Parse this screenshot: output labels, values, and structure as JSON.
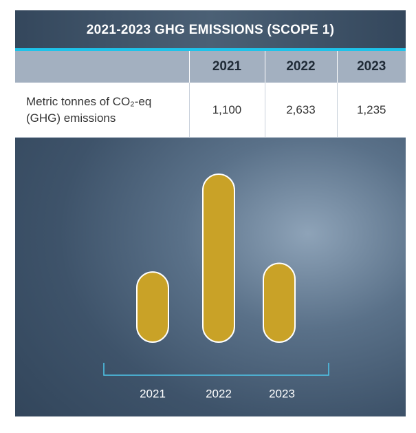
{
  "title": "2021-2023 GHG EMISSIONS (SCOPE 1)",
  "table": {
    "header": [
      "2021",
      "2022",
      "2023"
    ],
    "rows": [
      [
        "Metric tonnes of CO₂-eq (GHG) emissions",
        "1,100",
        "2,633",
        "1,235"
      ]
    ]
  },
  "chart_data": {
    "type": "bar",
    "categories": [
      "2021",
      "2022",
      "2023"
    ],
    "values": [
      1100,
      2633,
      1235
    ],
    "color": "#c9a227"
  }
}
